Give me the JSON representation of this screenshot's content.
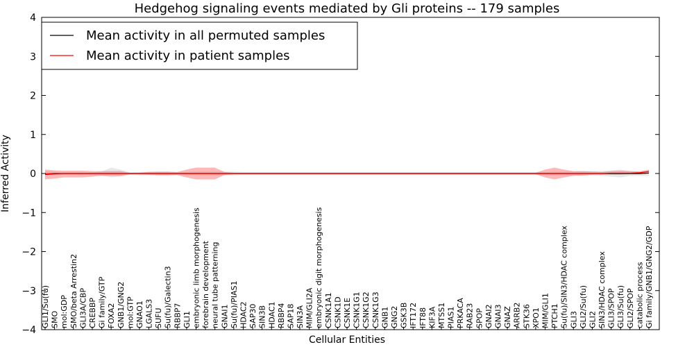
{
  "chart_data": {
    "type": "line",
    "title": "Hedgehog signaling events mediated by Gli proteins -- 179 samples",
    "xlabel": "Cellular Entities",
    "ylabel": "Inferred Activity",
    "ylim": [
      -4,
      4
    ],
    "yticks": [
      -4,
      -3,
      -2,
      -1,
      0,
      1,
      2,
      3,
      4
    ],
    "ytick_labels": [
      "−4",
      "−3",
      "−2",
      "−1",
      "0",
      "1",
      "2",
      "3",
      "4"
    ],
    "grid": false,
    "legend_position": "top-left",
    "categories": [
      "GLI1/Su(fu)",
      "SMO",
      "mol:GDP",
      "SMO/beta Arrestin2",
      "GLI3A/CBP",
      "CREBBP",
      "Gi family/GTP",
      "FOXA2",
      "GNB1/GNG2",
      "mol:GTP",
      "GNAO1",
      "LGALS3",
      "SUFU",
      "Su(fu)/Galectin3",
      "RBBP7",
      "GLI1",
      "embryonic limb morphogenesis",
      "forebrain development",
      "neural tube patterning",
      "GNAI1",
      "Su(fu)/PIAS1",
      "HDAC2",
      "SAP30",
      "SIN3B",
      "HDAC1",
      "RBBP4",
      "SAP18",
      "SIN3A",
      "MIM/GLI2A",
      "embryonic digit morphogenesis",
      "CSNK1A1",
      "CSNK1D",
      "CSNK1E",
      "CSNK1G1",
      "CSNK1G2",
      "CSNK1G3",
      "GNB1",
      "GNG2",
      "GSK3B",
      "IFT172",
      "IFT88",
      "KIF3A",
      "MTSS1",
      "PIAS1",
      "PRKACA",
      "RAB23",
      "SPOP",
      "GNAI2",
      "GNAI3",
      "GNAZ",
      "ARRB2",
      "STK36",
      "XPO1",
      "MIM/GLI1",
      "PTCH1",
      "Su(fu)/SIN3/HDAC complex",
      "GLI3",
      "GLI2/Su(fu)",
      "GLI2",
      "SIN3/HDAC complex",
      "GLI3/SPOP",
      "GLI3/Su(fu)",
      "GLI2/SPOP",
      "catabolic process",
      "Gi family/GNB1/GNG2/GDP"
    ],
    "series": [
      {
        "name": "Mean activity in all permuted samples",
        "color": "#000000",
        "values": [
          -0.02,
          -0.01,
          0.0,
          0.0,
          0.0,
          0.0,
          0.0,
          0.0,
          0.0,
          0.0,
          0.0,
          0.0,
          0.0,
          0.0,
          0.0,
          0.0,
          0.0,
          0.0,
          0.0,
          0.0,
          0.0,
          0.0,
          0.0,
          0.0,
          0.0,
          0.0,
          0.0,
          0.0,
          0.0,
          0.0,
          0.0,
          0.0,
          0.0,
          0.0,
          0.0,
          0.0,
          0.0,
          0.0,
          0.0,
          0.0,
          0.0,
          0.0,
          0.0,
          0.0,
          0.0,
          0.0,
          0.0,
          0.0,
          0.0,
          0.0,
          0.0,
          0.0,
          0.0,
          0.0,
          0.0,
          0.0,
          0.0,
          0.0,
          0.0,
          0.0,
          0.0,
          0.0,
          0.0,
          0.0,
          0.01
        ],
        "band_low": [
          -0.06,
          -0.05,
          -0.03,
          -0.03,
          -0.03,
          -0.03,
          -0.05,
          -0.1,
          -0.08,
          -0.03,
          -0.05,
          -0.05,
          -0.04,
          -0.04,
          -0.03,
          -0.04,
          -0.05,
          -0.05,
          -0.05,
          -0.05,
          -0.05,
          -0.04,
          -0.04,
          -0.04,
          -0.04,
          -0.04,
          -0.04,
          -0.04,
          -0.04,
          -0.04,
          -0.04,
          -0.04,
          -0.04,
          -0.04,
          -0.04,
          -0.04,
          -0.04,
          -0.04,
          -0.04,
          -0.04,
          -0.04,
          -0.04,
          -0.04,
          -0.04,
          -0.04,
          -0.04,
          -0.04,
          -0.04,
          -0.04,
          -0.04,
          -0.04,
          -0.04,
          -0.04,
          -0.04,
          -0.05,
          -0.05,
          -0.05,
          -0.06,
          -0.06,
          -0.06,
          -0.08,
          -0.1,
          -0.06,
          -0.06,
          -0.06
        ],
        "band_high": [
          0.06,
          0.05,
          0.03,
          0.03,
          0.03,
          0.03,
          0.05,
          0.15,
          0.1,
          0.03,
          0.04,
          0.05,
          0.04,
          0.04,
          0.03,
          0.04,
          0.05,
          0.05,
          0.05,
          0.05,
          0.05,
          0.04,
          0.04,
          0.04,
          0.04,
          0.04,
          0.04,
          0.04,
          0.04,
          0.04,
          0.04,
          0.04,
          0.04,
          0.04,
          0.04,
          0.04,
          0.04,
          0.04,
          0.04,
          0.04,
          0.04,
          0.04,
          0.04,
          0.04,
          0.04,
          0.04,
          0.04,
          0.04,
          0.04,
          0.04,
          0.04,
          0.04,
          0.04,
          0.04,
          0.05,
          0.05,
          0.05,
          0.06,
          0.06,
          0.06,
          0.08,
          0.1,
          0.06,
          0.06,
          0.08
        ]
      },
      {
        "name": "Mean activity in patient samples",
        "color": "#ff0000",
        "values": [
          -0.01,
          0.0,
          0.0,
          0.0,
          0.0,
          0.0,
          0.0,
          0.0,
          0.0,
          0.0,
          0.0,
          0.0,
          0.0,
          0.0,
          0.0,
          0.0,
          0.0,
          0.0,
          0.0,
          0.0,
          0.0,
          0.0,
          0.0,
          0.0,
          0.0,
          0.0,
          0.0,
          0.0,
          0.0,
          0.0,
          0.0,
          0.0,
          0.0,
          0.0,
          0.0,
          0.0,
          0.0,
          0.0,
          0.0,
          0.0,
          0.0,
          0.0,
          0.0,
          0.0,
          0.0,
          0.0,
          0.0,
          0.0,
          0.0,
          0.0,
          0.0,
          0.0,
          0.0,
          0.0,
          0.0,
          0.0,
          0.0,
          0.0,
          0.0,
          0.0,
          0.01,
          0.01,
          0.01,
          0.02,
          0.05
        ],
        "band_low": [
          -0.15,
          -0.13,
          -0.1,
          -0.1,
          -0.1,
          -0.08,
          -0.06,
          -0.06,
          -0.06,
          -0.02,
          -0.02,
          -0.03,
          -0.05,
          -0.05,
          -0.04,
          -0.1,
          -0.15,
          -0.15,
          -0.15,
          -0.04,
          -0.02,
          -0.02,
          -0.02,
          -0.02,
          -0.02,
          -0.02,
          -0.02,
          -0.02,
          -0.02,
          -0.02,
          -0.02,
          -0.02,
          -0.02,
          -0.02,
          -0.02,
          -0.02,
          -0.02,
          -0.02,
          -0.02,
          -0.02,
          -0.02,
          -0.02,
          -0.02,
          -0.02,
          -0.02,
          -0.02,
          -0.02,
          -0.02,
          -0.02,
          -0.02,
          -0.02,
          -0.02,
          -0.02,
          -0.1,
          -0.15,
          -0.1,
          -0.06,
          -0.05,
          -0.03,
          -0.03,
          -0.03,
          -0.03,
          -0.02,
          -0.02,
          0.0
        ],
        "band_high": [
          0.1,
          0.08,
          0.07,
          0.07,
          0.07,
          0.06,
          0.06,
          0.06,
          0.06,
          0.02,
          0.02,
          0.04,
          0.05,
          0.05,
          0.04,
          0.1,
          0.15,
          0.15,
          0.15,
          0.04,
          0.02,
          0.02,
          0.02,
          0.02,
          0.02,
          0.02,
          0.02,
          0.02,
          0.02,
          0.02,
          0.02,
          0.02,
          0.02,
          0.02,
          0.02,
          0.02,
          0.02,
          0.02,
          0.02,
          0.02,
          0.02,
          0.02,
          0.02,
          0.02,
          0.02,
          0.02,
          0.02,
          0.02,
          0.02,
          0.02,
          0.02,
          0.02,
          0.02,
          0.1,
          0.15,
          0.1,
          0.06,
          0.06,
          0.05,
          0.04,
          0.06,
          0.07,
          0.06,
          0.05,
          0.1
        ]
      }
    ]
  }
}
